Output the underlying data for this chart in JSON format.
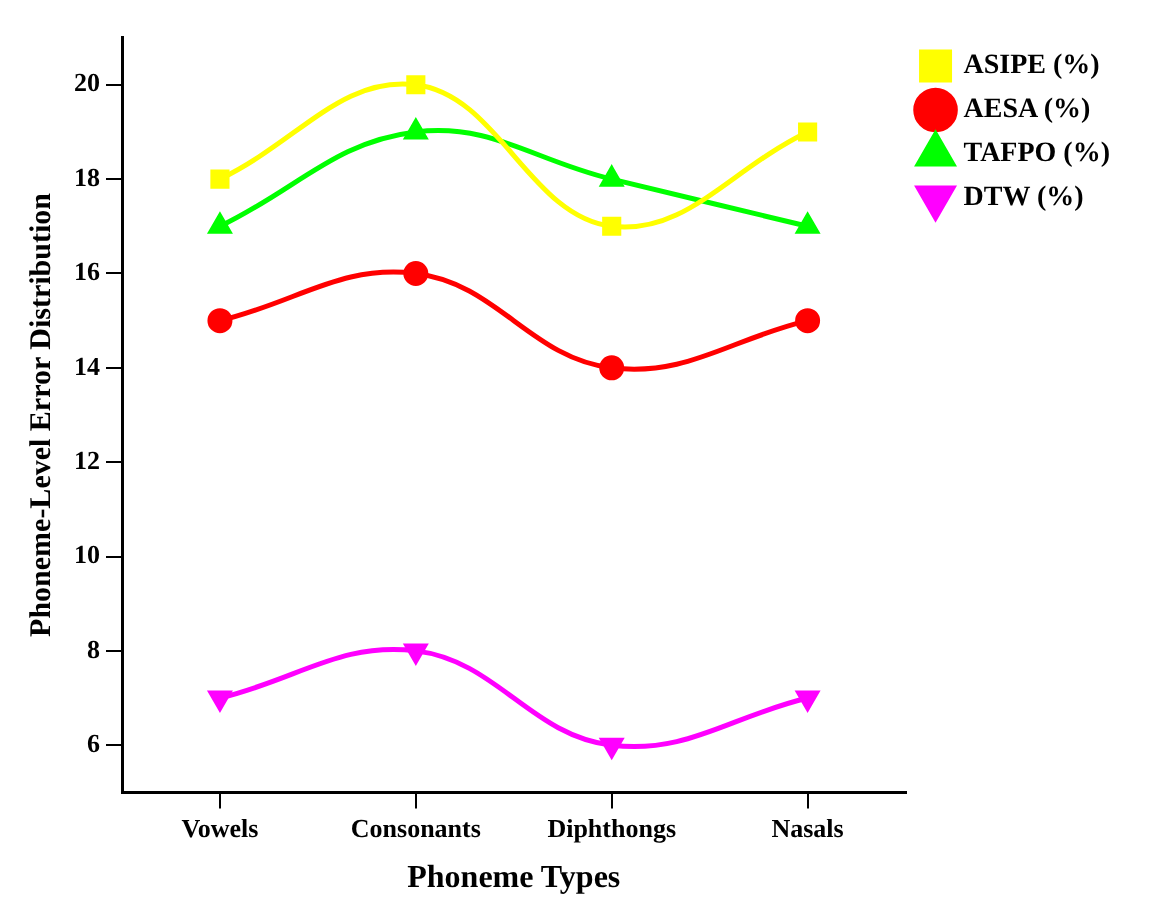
{
  "chart_data": {
    "type": "line",
    "xlabel": "Phoneme Types",
    "ylabel": "Phoneme-Level Error Distribution",
    "categories": [
      "Vowels",
      "Consonants",
      "Diphthongs",
      "Nasals"
    ],
    "series": [
      {
        "name": "ASIPE (%)",
        "color": "#ffff00",
        "marker": "square",
        "values": [
          18,
          20,
          17,
          19
        ]
      },
      {
        "name": "AESA (%)",
        "color": "#ff0000",
        "marker": "circle",
        "values": [
          15,
          16,
          14,
          15
        ]
      },
      {
        "name": "TAFPO (%)",
        "color": "#00ff00",
        "marker": "triangle",
        "values": [
          17,
          19,
          18,
          17
        ]
      },
      {
        "name": "DTW (%)",
        "color": "#ff00ff",
        "marker": "triangle-down",
        "values": [
          7,
          8,
          6,
          7
        ]
      }
    ],
    "ylim": [
      5,
      21
    ],
    "yticks": [
      6,
      8,
      10,
      12,
      14,
      16,
      18,
      20
    ],
    "grid": false,
    "legend": "top right",
    "line_style": "solid"
  }
}
